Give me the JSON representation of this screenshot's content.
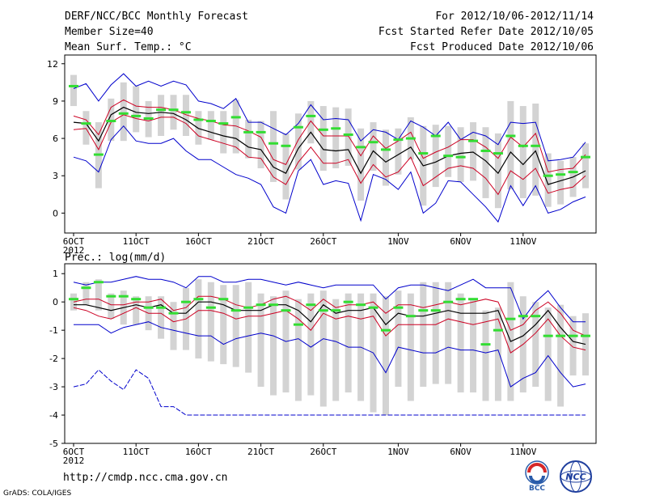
{
  "header": {
    "title": "DERF/NCC/BCC Monthly Forecast",
    "member_size": "Member Size=40",
    "variable": "Mean Surf. Temp.: °C",
    "period": "For 2012/10/06-2012/11/14",
    "started": "Fcst Started Refer Date 2012/10/05",
    "produced": "Fcst Produced Date 2012/10/06"
  },
  "footer": {
    "url": "http://cmdp.ncc.cma.gov.cn",
    "grads": "GrADS: COLA/IGES",
    "logo1_text": "BCC",
    "logo2_text": "NCC"
  },
  "colors": {
    "ensemble_range": "#0000cc",
    "spread": "#cc0022",
    "mean": "#000000",
    "member_box": "#d3d3d3",
    "median": "#33dd33",
    "envelope_bottom": "#0000cc"
  },
  "chart_data": [
    {
      "type": "line",
      "title": "Mean Surf. Temp.: °C",
      "x_ticks": [
        "6OCT",
        "11OCT",
        "16OCT",
        "21OCT",
        "26OCT",
        "1NOV",
        "6NOV",
        "11NOV"
      ],
      "x_tick_days": [
        0,
        5,
        10,
        15,
        20,
        26,
        31,
        36
      ],
      "x_year": "2012",
      "ylim": [
        -1.6,
        12.7
      ],
      "yticks": [
        "12",
        "9",
        "6",
        "3",
        "0"
      ],
      "ytick_values": [
        12,
        9,
        6,
        3,
        0
      ],
      "series": [
        {
          "name": "max",
          "values": [
            10.0,
            10.4,
            9.0,
            10.3,
            11.2,
            10.2,
            10.6,
            10.2,
            10.6,
            10.3,
            9.0,
            8.8,
            8.4,
            9.2,
            7.3,
            7.3,
            6.8,
            6.3,
            7.2,
            8.7,
            7.5,
            7.6,
            7.5,
            5.8,
            6.7,
            6.5,
            5.9,
            7.4,
            6.9,
            6.2,
            7.3,
            5.9,
            6.5,
            6.2,
            5.5,
            7.3,
            7.2,
            7.3,
            4.2,
            4.3,
            4.5,
            5.7
          ]
        },
        {
          "name": "upper",
          "values": [
            7.8,
            7.5,
            6.3,
            8.5,
            9.1,
            8.6,
            8.5,
            8.5,
            8.3,
            7.9,
            7.6,
            7.4,
            7.1,
            7.0,
            6.6,
            6.1,
            4.3,
            3.9,
            5.9,
            7.4,
            6.2,
            6.2,
            6.2,
            4.6,
            6.2,
            5.2,
            5.8,
            6.5,
            4.4,
            4.9,
            5.3,
            5.9,
            5.9,
            5.3,
            4.4,
            6.1,
            5.3,
            6.4,
            3.3,
            3.5,
            3.6,
            4.7
          ]
        },
        {
          "name": "mean",
          "values": [
            7.3,
            7.2,
            5.8,
            7.9,
            8.5,
            8.1,
            8.0,
            8.1,
            8.0,
            7.5,
            6.8,
            6.5,
            6.2,
            6.0,
            5.3,
            5.1,
            3.7,
            3.2,
            5.2,
            6.5,
            5.1,
            5.0,
            5.1,
            3.2,
            5.0,
            4.1,
            4.7,
            5.3,
            3.8,
            4.1,
            4.6,
            4.8,
            4.9,
            4.2,
            3.2,
            4.9,
            3.9,
            5.0,
            2.3,
            2.6,
            2.9,
            3.4
          ]
        },
        {
          "name": "lower",
          "values": [
            6.7,
            6.8,
            5.1,
            7.3,
            7.9,
            7.6,
            7.4,
            7.7,
            7.7,
            7.2,
            6.2,
            5.9,
            5.6,
            5.3,
            4.5,
            4.4,
            2.9,
            2.3,
            4.1,
            5.3,
            4.0,
            4.0,
            4.3,
            2.4,
            3.9,
            2.9,
            3.3,
            4.5,
            2.2,
            2.9,
            3.6,
            3.8,
            3.6,
            2.8,
            1.5,
            3.4,
            2.7,
            3.6,
            1.6,
            1.9,
            2.1,
            3.0
          ]
        },
        {
          "name": "min",
          "values": [
            4.5,
            4.2,
            3.3,
            5.9,
            7.0,
            5.8,
            5.6,
            5.6,
            6.0,
            5.0,
            4.3,
            4.3,
            3.7,
            3.1,
            2.8,
            2.3,
            0.5,
            0.0,
            3.4,
            4.3,
            2.3,
            2.6,
            2.4,
            -0.6,
            3.1,
            2.7,
            1.9,
            3.3,
            0.0,
            0.8,
            2.6,
            2.5,
            1.5,
            0.5,
            -0.7,
            2.2,
            0.6,
            2.2,
            0.0,
            0.3,
            0.9,
            1.3
          ]
        },
        {
          "name": "median",
          "values": [
            10.2,
            7.2,
            4.7,
            7.4,
            8.0,
            7.8,
            7.6,
            8.3,
            8.3,
            8.1,
            7.5,
            7.4,
            7.2,
            7.7,
            6.5,
            6.5,
            5.6,
            5.4,
            6.9,
            7.8,
            6.7,
            6.8,
            6.3,
            5.3,
            5.7,
            5.1,
            5.9,
            6.0,
            4.8,
            6.2,
            4.6,
            4.5,
            5.8,
            5.0,
            4.8,
            6.2,
            5.4,
            5.4,
            3.0,
            3.1,
            3.3,
            4.5
          ]
        },
        {
          "name": "member_box_high",
          "values": [
            11.1,
            8.2,
            7.3,
            9.2,
            10.5,
            10.2,
            9.0,
            9.5,
            9.5,
            9.5,
            8.2,
            8.2,
            8.2,
            9.1,
            7.5,
            7.4,
            8.2,
            6.4,
            8.0,
            9.0,
            8.6,
            8.5,
            8.4,
            6.8,
            7.3,
            6.7,
            6.8,
            7.7,
            7.0,
            7.1,
            7.0,
            6.9,
            7.3,
            6.9,
            6.4,
            9.0,
            8.6,
            8.8,
            4.8,
            4.2,
            4.5,
            5.6
          ]
        },
        {
          "name": "member_box_low",
          "values": [
            8.6,
            5.5,
            2.0,
            5.8,
            5.8,
            6.5,
            6.1,
            6.2,
            6.7,
            6.2,
            5.5,
            5.9,
            4.8,
            4.8,
            4.4,
            3.6,
            2.5,
            1.1,
            3.5,
            5.6,
            3.4,
            3.6,
            3.8,
            1.0,
            3.4,
            2.2,
            3.1,
            4.3,
            0.6,
            2.1,
            2.9,
            2.5,
            2.6,
            1.2,
            0.4,
            1.9,
            1.2,
            1.4,
            0.5,
            0.7,
            1.3,
            2.0
          ]
        }
      ]
    },
    {
      "type": "line",
      "title": "Prec.: log(mm/d)",
      "x_ticks": [
        "6OCT",
        "11OCT",
        "16OCT",
        "21OCT",
        "26OCT",
        "1NOV",
        "6NOV",
        "11NOV"
      ],
      "x_tick_days": [
        0,
        5,
        10,
        15,
        20,
        26,
        31,
        36
      ],
      "x_year": "2012",
      "ylim": [
        -5,
        1.35
      ],
      "yticks": [
        "1",
        "0",
        "-1",
        "-2",
        "-3",
        "-4",
        "-5"
      ],
      "ytick_values": [
        1,
        0,
        -1,
        -2,
        -3,
        -4,
        -5
      ],
      "series": [
        {
          "name": "max",
          "values": [
            0.7,
            0.6,
            0.7,
            0.7,
            0.8,
            0.9,
            0.8,
            0.8,
            0.7,
            0.5,
            0.9,
            0.9,
            0.7,
            0.7,
            0.8,
            0.8,
            0.7,
            0.6,
            0.7,
            0.6,
            0.5,
            0.6,
            0.6,
            0.6,
            0.6,
            0.1,
            0.5,
            0.6,
            0.6,
            0.5,
            0.4,
            0.6,
            0.8,
            0.5,
            0.5,
            0.5,
            -0.6,
            0.0,
            0.4,
            -0.2,
            -0.7,
            -0.7
          ]
        },
        {
          "name": "upper",
          "values": [
            0.0,
            0.1,
            0.1,
            -0.1,
            -0.1,
            0.0,
            0.0,
            0.1,
            -0.3,
            -0.2,
            0.2,
            0.2,
            0.1,
            -0.1,
            -0.2,
            -0.1,
            0.1,
            0.2,
            0.0,
            -0.3,
            0.1,
            -0.2,
            -0.1,
            -0.1,
            0.0,
            -0.4,
            -0.1,
            -0.1,
            -0.2,
            -0.1,
            0.0,
            -0.1,
            0.0,
            0.1,
            0.0,
            -1.0,
            -0.8,
            -0.3,
            0.0,
            -0.4,
            -1.0,
            -1.2
          ]
        },
        {
          "name": "mean",
          "values": [
            -0.1,
            -0.1,
            -0.2,
            -0.3,
            -0.2,
            -0.1,
            -0.2,
            -0.1,
            -0.4,
            -0.4,
            0.0,
            0.0,
            -0.1,
            -0.3,
            -0.3,
            -0.3,
            -0.1,
            -0.1,
            -0.3,
            -0.7,
            -0.1,
            -0.4,
            -0.3,
            -0.3,
            -0.2,
            -0.8,
            -0.4,
            -0.5,
            -0.5,
            -0.4,
            -0.3,
            -0.4,
            -0.4,
            -0.4,
            -0.3,
            -1.4,
            -1.2,
            -0.8,
            -0.3,
            -0.9,
            -1.4,
            -1.5
          ]
        },
        {
          "name": "lower",
          "values": [
            -0.2,
            -0.3,
            -0.5,
            -0.6,
            -0.4,
            -0.2,
            -0.4,
            -0.4,
            -0.7,
            -0.6,
            -0.3,
            -0.3,
            -0.4,
            -0.6,
            -0.5,
            -0.5,
            -0.4,
            -0.3,
            -0.6,
            -1.0,
            -0.4,
            -0.6,
            -0.5,
            -0.6,
            -0.5,
            -1.2,
            -0.8,
            -0.8,
            -0.8,
            -0.8,
            -0.6,
            -0.7,
            -0.8,
            -0.7,
            -0.6,
            -1.8,
            -1.5,
            -1.1,
            -0.6,
            -1.2,
            -1.6,
            -1.7
          ]
        },
        {
          "name": "min",
          "values": [
            -0.8,
            -0.8,
            -0.8,
            -1.1,
            -0.9,
            -0.8,
            -0.7,
            -0.9,
            -1.0,
            -1.1,
            -1.2,
            -1.2,
            -1.5,
            -1.3,
            -1.2,
            -1.1,
            -1.2,
            -1.4,
            -1.3,
            -1.6,
            -1.3,
            -1.4,
            -1.6,
            -1.6,
            -1.8,
            -2.5,
            -1.6,
            -1.7,
            -1.8,
            -1.8,
            -1.6,
            -1.7,
            -1.7,
            -1.8,
            -1.7,
            -3.0,
            -2.7,
            -2.5,
            -1.9,
            -2.5,
            -3.0,
            -2.9
          ]
        },
        {
          "name": "median",
          "values": [
            0.1,
            0.5,
            0.7,
            0.2,
            0.2,
            0.1,
            -0.2,
            -0.2,
            -0.4,
            0.0,
            0.1,
            -0.2,
            0.1,
            -0.3,
            -0.2,
            -0.1,
            -0.1,
            -0.3,
            -0.8,
            -0.1,
            -0.3,
            -0.3,
            0.0,
            -0.1,
            -0.2,
            -1.0,
            -0.2,
            -0.5,
            -0.3,
            -0.3,
            0.0,
            0.1,
            0.1,
            -1.5,
            -1.0,
            -0.6,
            -0.5,
            -0.5,
            -1.2,
            -1.2,
            -1.2,
            -1.2
          ]
        },
        {
          "name": "member_box_high",
          "values": [
            0.3,
            0.7,
            0.8,
            0.3,
            0.4,
            0.2,
            0.2,
            0.2,
            0.0,
            0.5,
            0.8,
            0.7,
            0.6,
            0.6,
            0.7,
            0.3,
            0.2,
            0.4,
            0.1,
            0.3,
            0.4,
            0.1,
            0.3,
            0.3,
            0.3,
            0.2,
            0.4,
            0.3,
            0.7,
            0.7,
            0.7,
            0.3,
            0.1,
            -0.3,
            -0.2,
            0.7,
            0.2,
            0.0,
            -0.2,
            -0.1,
            -0.5,
            -0.4
          ]
        },
        {
          "name": "member_box_low",
          "values": [
            -0.3,
            -0.1,
            -0.3,
            -0.6,
            -0.8,
            -0.8,
            -1.0,
            -1.3,
            -1.7,
            -1.7,
            -2.0,
            -2.1,
            -2.2,
            -2.3,
            -2.5,
            -3.0,
            -3.3,
            -3.2,
            -3.5,
            -3.3,
            -3.7,
            -3.5,
            -3.2,
            -3.5,
            -3.9,
            -4.0,
            -3.0,
            -3.5,
            -3.0,
            -2.9,
            -2.9,
            -3.2,
            -3.2,
            -3.5,
            -3.5,
            -3.5,
            -3.2,
            -3.0,
            -3.5,
            -3.7,
            -2.6,
            -2.6
          ]
        },
        {
          "name": "envelope_bottom",
          "values": [
            -3.0,
            -2.9,
            -2.4,
            -2.8,
            -3.1,
            -2.4,
            -2.7,
            -3.7,
            -3.7,
            -4.0,
            -4.0,
            -4.0,
            -4.0,
            -4.0,
            -4.0,
            -4.0,
            -4.0,
            -4.0,
            -4.0,
            -4.0,
            -4.0,
            -4.0,
            -4.0,
            -4.0,
            -4.0,
            -4.0,
            -4.0,
            -4.0,
            -4.0,
            -4.0,
            -4.0,
            -4.0,
            -4.0,
            -4.0,
            -4.0,
            -4.0,
            -4.0,
            -4.0,
            -4.0,
            -4.0,
            -4.0,
            -4.0
          ]
        }
      ]
    }
  ]
}
